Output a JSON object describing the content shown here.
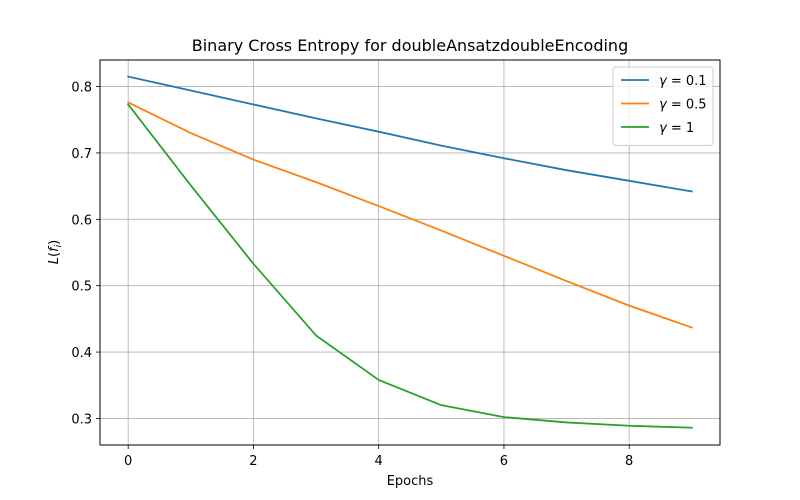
{
  "chart_data": {
    "type": "line",
    "title": "Binary Cross Entropy for doubleAnsatzdoubleEncoding",
    "xlabel": "Epochs",
    "ylabel": "L(f_i)",
    "x": [
      0,
      1,
      2,
      3,
      4,
      5,
      6,
      7,
      8,
      9
    ],
    "xlim": [
      -0.45,
      9.45
    ],
    "ylim": [
      0.26,
      0.84
    ],
    "xticks": [
      0,
      2,
      4,
      6,
      8
    ],
    "yticks": [
      0.3,
      0.4,
      0.5,
      0.6,
      0.7,
      0.8
    ],
    "xtick_labels": [
      "0",
      "2",
      "4",
      "6",
      "8"
    ],
    "ytick_labels": [
      "0.3",
      "0.4",
      "0.5",
      "0.6",
      "0.7",
      "0.8"
    ],
    "grid": true,
    "legend_position": "top-right",
    "series": [
      {
        "name_prefix": "γ",
        "name_value": "= 0.1",
        "color": "#1f77b4",
        "values": [
          0.815,
          0.794,
          0.773,
          0.752,
          0.732,
          0.711,
          0.692,
          0.674,
          0.658,
          0.642
        ]
      },
      {
        "name_prefix": "γ",
        "name_value": "= 0.5",
        "color": "#ff7f0e",
        "values": [
          0.776,
          0.73,
          0.69,
          0.656,
          0.62,
          0.583,
          0.545,
          0.507,
          0.47,
          0.437
        ]
      },
      {
        "name_prefix": "γ",
        "name_value": "= 1",
        "color": "#2ca02c",
        "values": [
          0.773,
          0.651,
          0.533,
          0.425,
          0.358,
          0.32,
          0.302,
          0.294,
          0.289,
          0.286
        ]
      }
    ]
  }
}
